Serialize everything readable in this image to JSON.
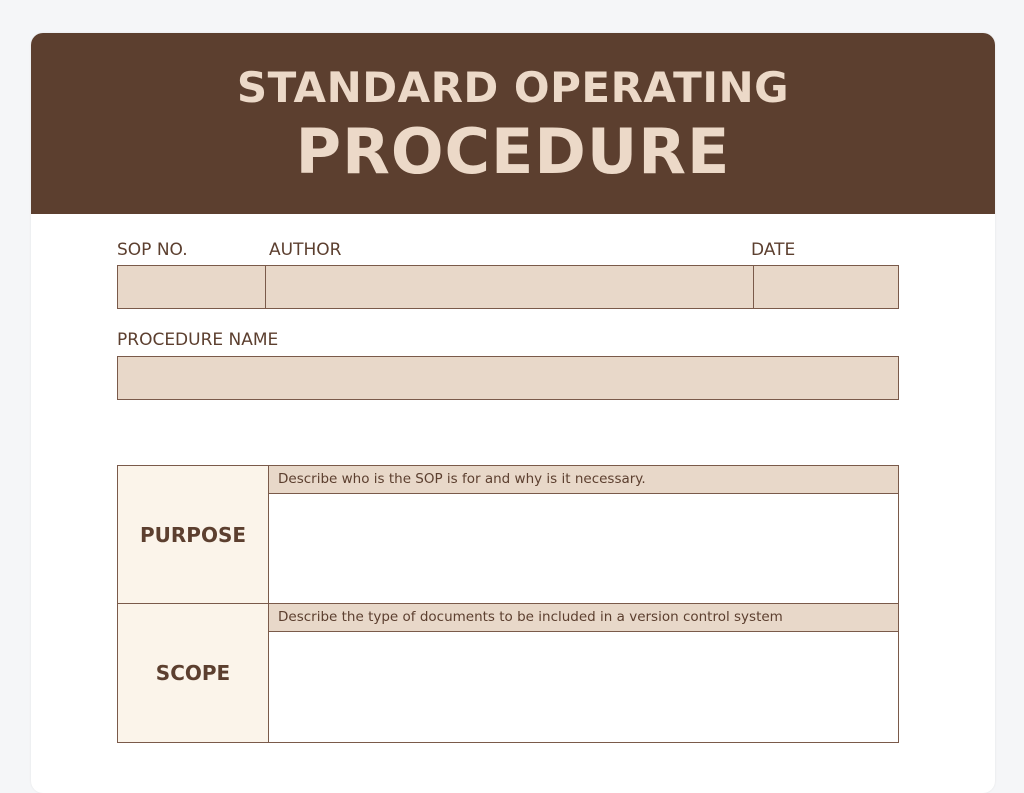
{
  "header": {
    "title_line1": "STANDARD OPERATING",
    "title_line2": "PROCEDURE"
  },
  "fields": {
    "sop_no_label": "SOP NO.",
    "author_label": "AUTHOR",
    "date_label": "DATE",
    "procedure_name_label": "PROCEDURE NAME"
  },
  "sections": [
    {
      "label": "PURPOSE",
      "hint": "Describe who is the SOP is for and why is it necessary."
    },
    {
      "label": "SCOPE",
      "hint": "Describe the type of documents to be included in a version control system"
    }
  ],
  "colors": {
    "header_bg": "#5c3f2f",
    "header_text": "#ecd9c8",
    "field_bg": "#e8d8c9",
    "label_cell_bg": "#fbf4ea"
  }
}
